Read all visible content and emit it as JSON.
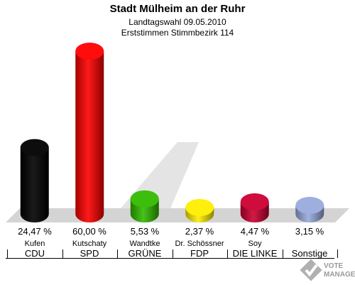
{
  "header": {
    "title": "Stadt Mülheim an der Ruhr",
    "line1": "Landtagswahl 09.05.2010",
    "line2": "Erststimmen Stimmbezirk 114"
  },
  "chart_data": {
    "type": "bar",
    "title": "Stadt Mülheim an der Ruhr",
    "categories": [
      "CDU",
      "SPD",
      "GRÜNE",
      "FDP",
      "DIE LINKE",
      "Sonstige"
    ],
    "candidates": [
      "Kufen",
      "Kutschaty",
      "Wandtke",
      "Dr. Schössner",
      "Soy",
      ""
    ],
    "values": [
      24.47,
      60.0,
      5.53,
      2.37,
      4.47,
      3.15
    ],
    "value_labels": [
      "24,47 %",
      "60,00 %",
      "5,53 %",
      "2,37 %",
      "4,47 %",
      "3,15 %"
    ],
    "colors": [
      "#000000",
      "#ff0000",
      "#33bb00",
      "#ffee00",
      "#cc0033",
      "#99aadd"
    ],
    "ylim": [
      0,
      60
    ]
  },
  "logo": {
    "line1": "VOTE",
    "line2": "MANAGER",
    "colors": {
      "mark": "#a8a8a8",
      "accent": "#c0c0c0"
    }
  }
}
